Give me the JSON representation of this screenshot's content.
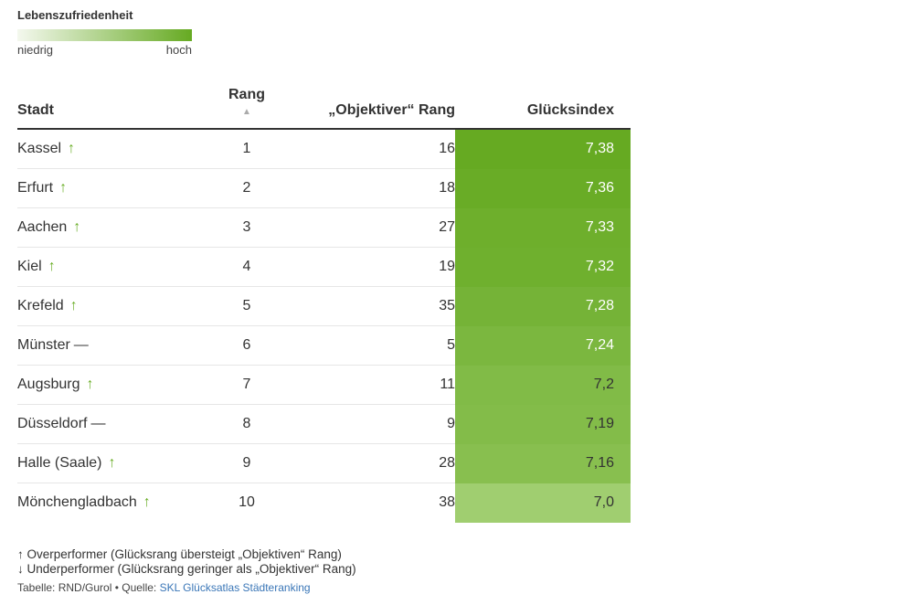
{
  "legend": {
    "title": "Lebenszufriedenheit",
    "low_label": "niedrig",
    "high_label": "hoch",
    "color_low": "#f4f8ee",
    "color_high": "#66aa22"
  },
  "table": {
    "headers": {
      "city": "Stadt",
      "rank": "Rang",
      "objective_rank": "„Objektiver“ Rang",
      "index": "Glücksindex"
    },
    "rows": [
      {
        "city": "Kassel",
        "trend": "↑",
        "rank": "1",
        "objective_rank": "16",
        "index": "7,38"
      },
      {
        "city": "Erfurt",
        "trend": "↑",
        "rank": "2",
        "objective_rank": "18",
        "index": "7,36"
      },
      {
        "city": "Aachen",
        "trend": "↑",
        "rank": "3",
        "objective_rank": "27",
        "index": "7,33"
      },
      {
        "city": "Kiel",
        "trend": "↑",
        "rank": "4",
        "objective_rank": "19",
        "index": "7,32"
      },
      {
        "city": "Krefeld",
        "trend": "↑",
        "rank": "5",
        "objective_rank": "35",
        "index": "7,28"
      },
      {
        "city": "Münster",
        "trend": "—",
        "rank": "6",
        "objective_rank": "5",
        "index": "7,24"
      },
      {
        "city": "Augsburg",
        "trend": "↑",
        "rank": "7",
        "objective_rank": "11",
        "index": "7,2"
      },
      {
        "city": "Düsseldorf",
        "trend": "—",
        "rank": "8",
        "objective_rank": "9",
        "index": "7,19"
      },
      {
        "city": "Halle (Saale)",
        "trend": "↑",
        "rank": "9",
        "objective_rank": "28",
        "index": "7,16"
      },
      {
        "city": "Mönchengladbach",
        "trend": "↑",
        "rank": "10",
        "objective_rank": "38",
        "index": "7,0"
      }
    ]
  },
  "notes": {
    "overperformer": "↑ Overperformer (Glücksrang übersteigt „Objektiven“ Rang)",
    "underperformer": "↓ Underperformer (Glücksrang geringer als „Objektiver“ Rang)"
  },
  "source": {
    "prefix": "Tabelle: RND/Gurol • Quelle: ",
    "link_text": "SKL Glücksatlas Städteranking"
  },
  "chart_data": {
    "type": "table",
    "columns": [
      "Stadt",
      "Rang",
      "„Objektiver“ Rang",
      "Glücksindex"
    ],
    "rows": [
      [
        "Kassel",
        1,
        16,
        7.38
      ],
      [
        "Erfurt",
        2,
        18,
        7.36
      ],
      [
        "Aachen",
        3,
        27,
        7.33
      ],
      [
        "Kiel",
        4,
        19,
        7.32
      ],
      [
        "Krefeld",
        5,
        35,
        7.28
      ],
      [
        "Münster",
        6,
        5,
        7.24
      ],
      [
        "Augsburg",
        7,
        11,
        7.2
      ],
      [
        "Düsseldorf",
        8,
        9,
        7.19
      ],
      [
        "Halle (Saale)",
        9,
        28,
        7.16
      ],
      [
        "Mönchengladbach",
        10,
        38,
        7.0
      ]
    ],
    "color_scale_domain": [
      7.0,
      7.38
    ]
  }
}
